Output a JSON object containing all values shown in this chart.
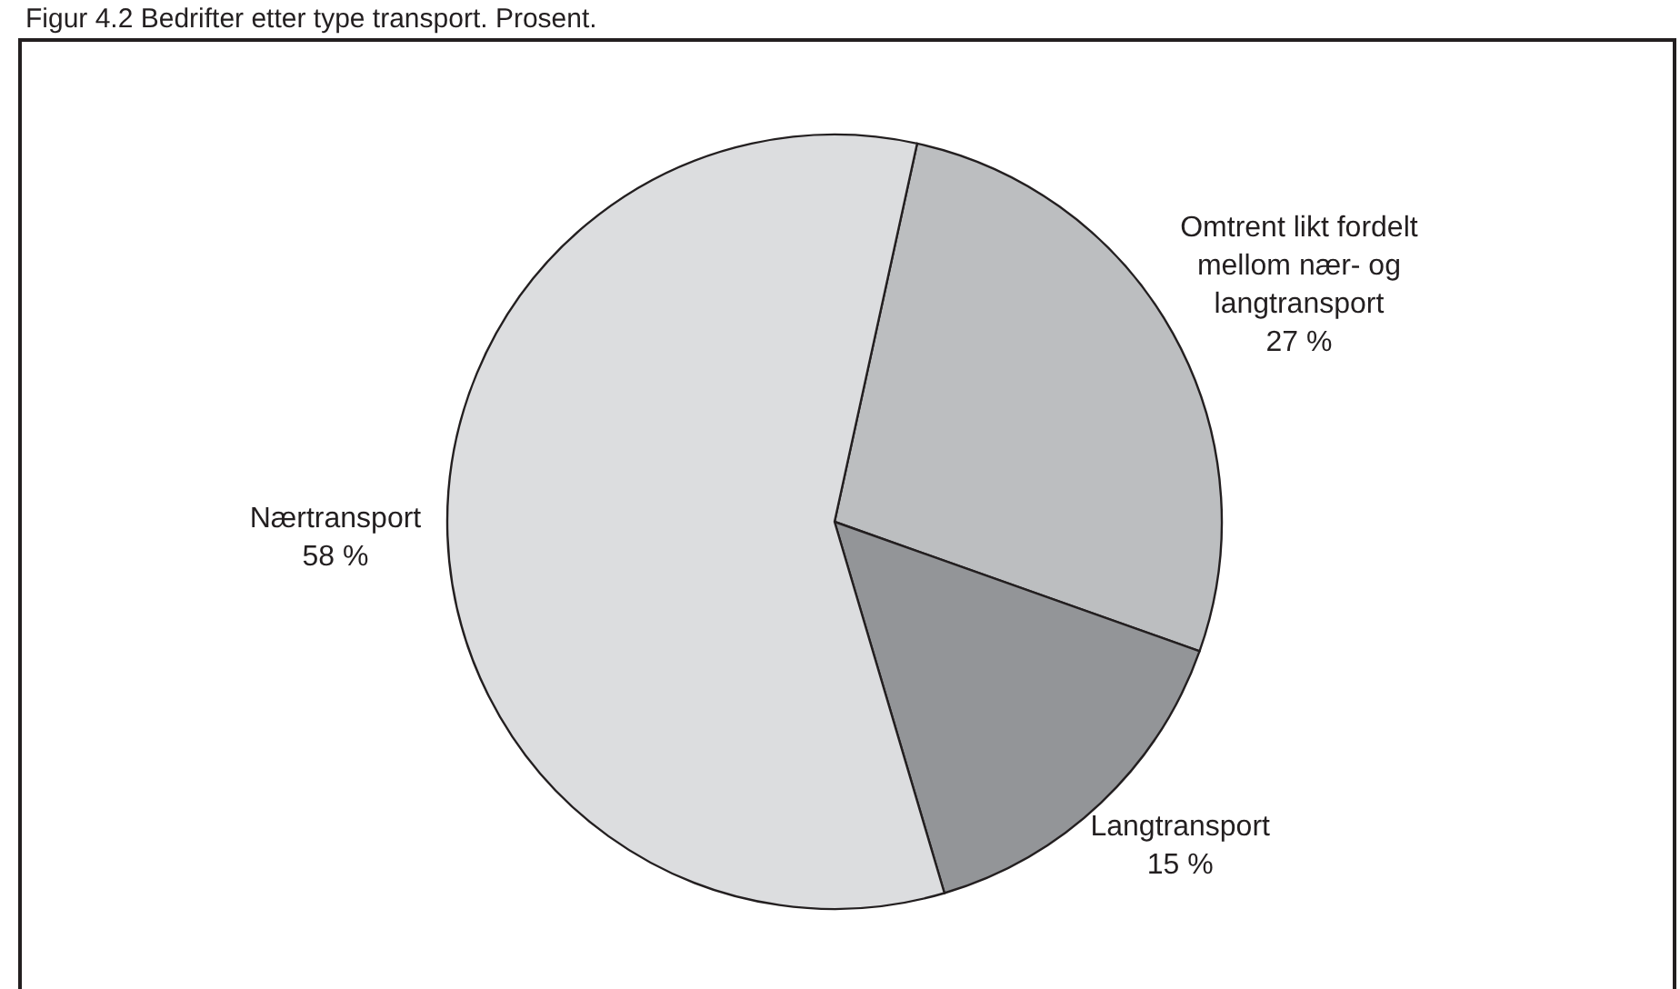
{
  "chart_data": {
    "type": "pie",
    "title": "Figur 4.2 Bedrifter etter type transport. Prosent.",
    "categories": [
      "Omtrent likt fordelt mellom nær- og langtransport",
      "Langtransport",
      "Nærtransport"
    ],
    "values": [
      27,
      15,
      58
    ],
    "colors": [
      "#bcbec0",
      "#939598",
      "#dcdddf"
    ],
    "value_labels": [
      "27 %",
      "15 %",
      "58 %"
    ]
  }
}
